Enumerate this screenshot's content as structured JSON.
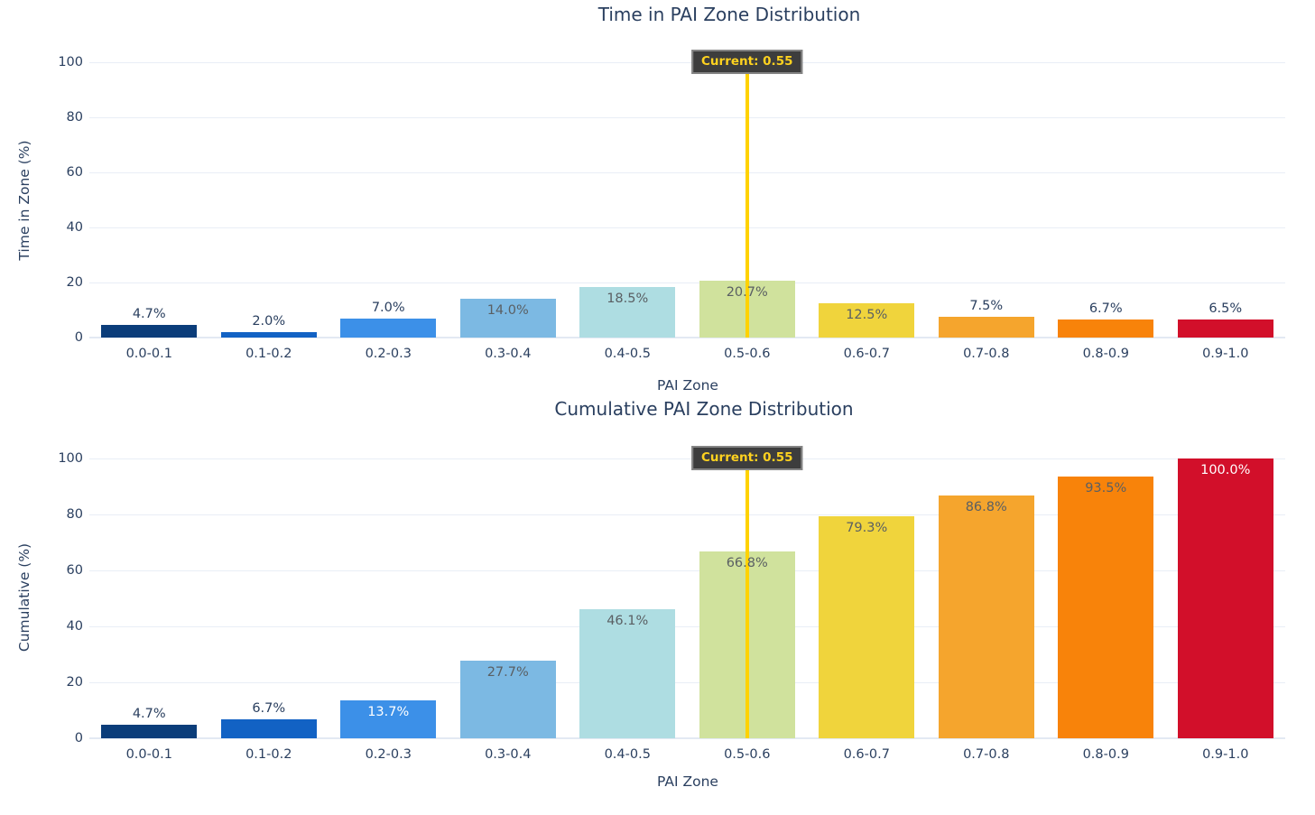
{
  "colors": {
    "background": "#ffffff",
    "text": "#2a3f5f",
    "inside_label": "#5a5f63",
    "grid": "#e9eef6",
    "zeroline": "#e3e9f3"
  },
  "chart_data": [
    {
      "type": "bar",
      "title": "Time in PAI Zone Distribution",
      "xlabel": "PAI Zone",
      "ylabel": "Time in Zone (%)",
      "categories": [
        "0.0-0.1",
        "0.1-0.2",
        "0.2-0.3",
        "0.3-0.4",
        "0.4-0.5",
        "0.5-0.6",
        "0.6-0.7",
        "0.7-0.8",
        "0.8-0.9",
        "0.9-1.0"
      ],
      "values": [
        4.7,
        2.0,
        7.0,
        14.0,
        18.5,
        20.7,
        12.5,
        7.5,
        6.7,
        6.5
      ],
      "labels": [
        "4.7%",
        "2.0%",
        "7.0%",
        "14.0%",
        "18.5%",
        "20.7%",
        "12.5%",
        "7.5%",
        "6.7%",
        "6.5%"
      ],
      "label_style": [
        "outside",
        "outside",
        "outside",
        "inside-dark",
        "inside-dark",
        "inside-dark",
        "inside-dark",
        "outside",
        "outside",
        "outside"
      ],
      "bar_colors": [
        "#0b3d7a",
        "#1262c4",
        "#3c90e8",
        "#7cb9e3",
        "#aedde2",
        "#d0e29d",
        "#f0d43c",
        "#f5a52d",
        "#f8830a",
        "#d20f2a"
      ],
      "ylim": [
        0,
        105
      ],
      "yticks": [
        0,
        20,
        40,
        60,
        80,
        100
      ],
      "grid": true,
      "legend": "none",
      "vline": {
        "x": 0.55,
        "label": "Current: 0.55",
        "line_color": "#ffd200",
        "box_bg": "#3d3d3d",
        "box_border": "#848484",
        "text_color": "#ffd21f"
      }
    },
    {
      "type": "bar",
      "title": "Cumulative PAI Zone Distribution",
      "xlabel": "PAI Zone",
      "ylabel": "Cumulative (%)",
      "categories": [
        "0.0-0.1",
        "0.1-0.2",
        "0.2-0.3",
        "0.3-0.4",
        "0.4-0.5",
        "0.5-0.6",
        "0.6-0.7",
        "0.7-0.8",
        "0.8-0.9",
        "0.9-1.0"
      ],
      "values": [
        4.7,
        6.7,
        13.7,
        27.7,
        46.1,
        66.8,
        79.3,
        86.8,
        93.5,
        100.0
      ],
      "labels": [
        "4.7%",
        "6.7%",
        "13.7%",
        "27.7%",
        "46.1%",
        "66.8%",
        "79.3%",
        "86.8%",
        "93.5%",
        "100.0%"
      ],
      "label_style": [
        "outside",
        "outside",
        "inside-white",
        "inside-dark",
        "inside-dark",
        "inside-dark",
        "inside-dark",
        "inside-dark",
        "inside-dark",
        "inside-white"
      ],
      "bar_colors": [
        "#0b3d7a",
        "#1262c4",
        "#3c90e8",
        "#7cb9e3",
        "#aedde2",
        "#d0e29d",
        "#f0d43c",
        "#f5a52d",
        "#f8830a",
        "#d20f2a"
      ],
      "ylim": [
        0,
        105
      ],
      "yticks": [
        0,
        20,
        40,
        60,
        80,
        100
      ],
      "grid": true,
      "legend": "none",
      "vline": {
        "x": 0.55,
        "label": "Current: 0.55",
        "line_color": "#ffd200",
        "box_bg": "#3d3d3d",
        "box_border": "#848484",
        "text_color": "#ffd21f"
      }
    }
  ]
}
